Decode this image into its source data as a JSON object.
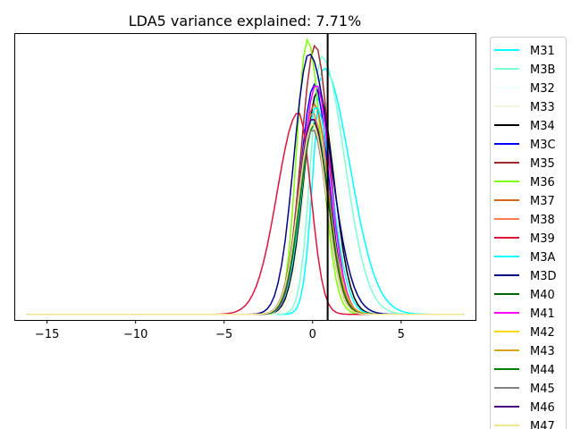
{
  "chart_data": {
    "type": "line",
    "title": "LDA5 variance explained: 7.71%",
    "xlabel": "",
    "ylabel": "",
    "xlim": [
      -16.8,
      9.2
    ],
    "ylim": [
      -0.02,
      1.0
    ],
    "x_ticks": [
      -15,
      -10,
      -5,
      0,
      5
    ],
    "x_tick_labels": [
      "−15",
      "−10",
      "−5",
      "0",
      "5"
    ],
    "y_ticks_visible": false,
    "grid": false,
    "legend_position": "outside-right",
    "vline": {
      "x": 0.85,
      "color": "#000000"
    },
    "x_range": [
      -16.1,
      8.5
    ],
    "series": [
      {
        "name": "M31",
        "color": "#00ffff",
        "peak": 0.6,
        "height": 0.88,
        "sl": 0.55,
        "sr": 1.5
      },
      {
        "name": "M3B",
        "color": "#7fffd4",
        "peak": 0.5,
        "height": 0.92,
        "sl": 0.6,
        "sr": 1.3
      },
      {
        "name": "M32",
        "color": "#f0ffff",
        "peak": 0.3,
        "height": 0.86,
        "sl": 0.7,
        "sr": 1.1
      },
      {
        "name": "M33",
        "color": "#f5f5dc",
        "peak": 0.3,
        "height": 0.84,
        "sl": 0.7,
        "sr": 1.0
      },
      {
        "name": "M34",
        "color": "#000000",
        "peak": 0.3,
        "height": 0.8,
        "sl": 0.8,
        "sr": 0.9
      },
      {
        "name": "M3C",
        "color": "#0000ff",
        "peak": 0.1,
        "height": 0.82,
        "sl": 0.8,
        "sr": 0.8
      },
      {
        "name": "M35",
        "color": "#a52a2a",
        "peak": 0.15,
        "height": 0.96,
        "sl": 0.8,
        "sr": 0.8
      },
      {
        "name": "M36",
        "color": "#7fff00",
        "peak": -0.3,
        "height": 0.98,
        "sl": 0.6,
        "sr": 0.8
      },
      {
        "name": "M37",
        "color": "#d2691e",
        "peak": 0.1,
        "height": 0.75,
        "sl": 0.8,
        "sr": 0.8
      },
      {
        "name": "M38",
        "color": "#ff7f50",
        "peak": 0.0,
        "height": 0.72,
        "sl": 0.8,
        "sr": 0.8
      },
      {
        "name": "M39",
        "color": "#dc143c",
        "peak": -0.8,
        "height": 0.72,
        "sl": 1.2,
        "sr": 0.7
      },
      {
        "name": "M3A",
        "color": "#00ffff",
        "peak": 0.2,
        "height": 0.74,
        "sl": 0.8,
        "sr": 0.9
      },
      {
        "name": "M3D",
        "color": "#00008b",
        "peak": -0.2,
        "height": 0.93,
        "sl": 0.85,
        "sr": 1.2
      },
      {
        "name": "M40",
        "color": "#006400",
        "peak": 0.0,
        "height": 0.7,
        "sl": 0.8,
        "sr": 0.8
      },
      {
        "name": "M41",
        "color": "#ff00ff",
        "peak": 0.2,
        "height": 0.82,
        "sl": 0.8,
        "sr": 0.8
      },
      {
        "name": "M42",
        "color": "#ffd700",
        "peak": 0.0,
        "height": 0.68,
        "sl": 0.8,
        "sr": 0.9
      },
      {
        "name": "M43",
        "color": "#daa520",
        "peak": 0.0,
        "height": 0.66,
        "sl": 0.8,
        "sr": 0.9
      },
      {
        "name": "M44",
        "color": "#008000",
        "peak": 0.1,
        "height": 0.68,
        "sl": 0.8,
        "sr": 0.8
      },
      {
        "name": "M45",
        "color": "#808080",
        "peak": 0.0,
        "height": 0.66,
        "sl": 0.8,
        "sr": 0.8
      },
      {
        "name": "M46",
        "color": "#4b0082",
        "peak": 0.0,
        "height": 0.7,
        "sl": 0.8,
        "sr": 0.8
      },
      {
        "name": "M47",
        "color": "#f0e68c",
        "peak": 0.0,
        "height": 0.68,
        "sl": 0.8,
        "sr": 0.8
      }
    ]
  }
}
